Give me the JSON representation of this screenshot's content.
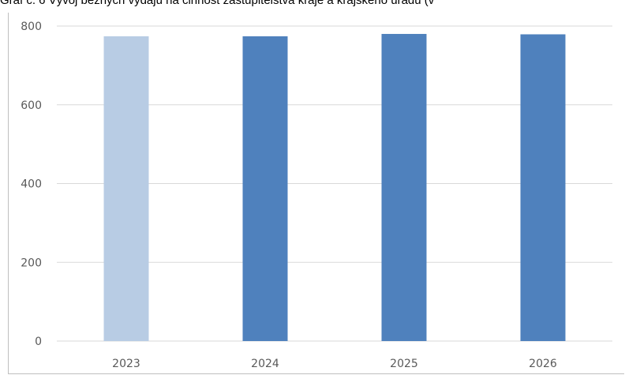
{
  "chart_data": {
    "type": "bar",
    "title": "Graf č. 6 Vývoj běžných výdajů na činnost zastupitelstva kraje a krajského úřadu (v",
    "categories": [
      "2023",
      "2024",
      "2025",
      "2026"
    ],
    "values": [
      774,
      774,
      780,
      779
    ],
    "bar_colors": [
      "#b8cce4",
      "#4f81bd",
      "#4f81bd",
      "#4f81bd"
    ],
    "yticks": [
      "0",
      "200",
      "400",
      "600",
      "800"
    ],
    "ylim": [
      0,
      800
    ],
    "grid": true,
    "legend": "none"
  }
}
